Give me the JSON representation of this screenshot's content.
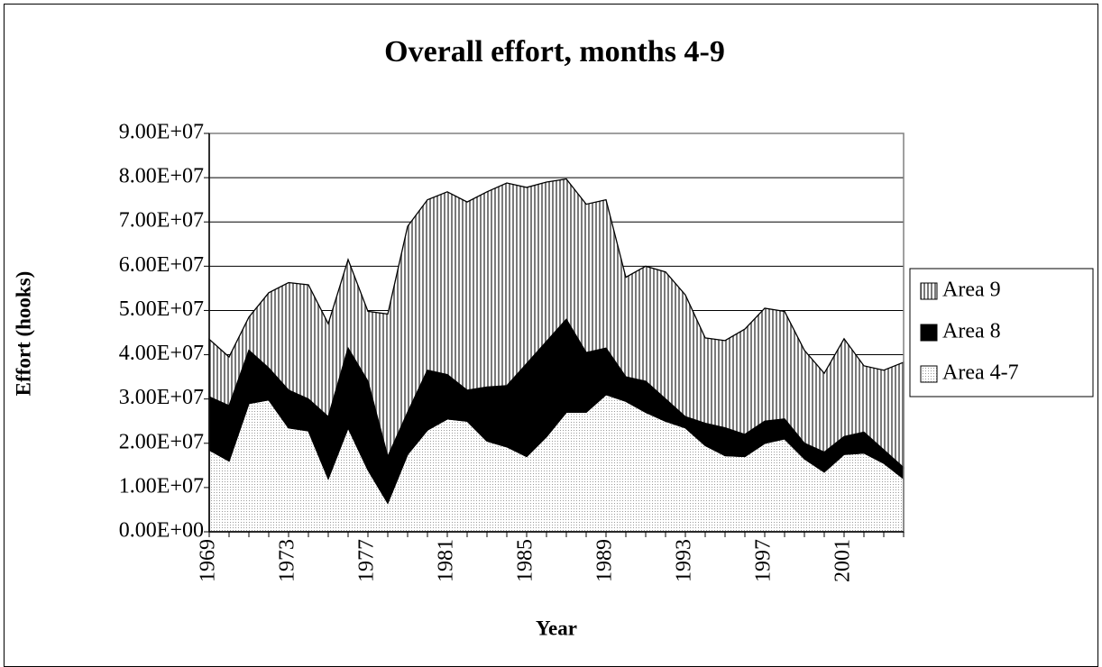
{
  "chart_data": {
    "type": "stacked-area",
    "title": "Overall effort, months 4-9",
    "x_label": "Year",
    "y_label": "Effort (hooks)",
    "categories": [
      "1969",
      null,
      null,
      null,
      "1973",
      null,
      null,
      null,
      "1977",
      null,
      null,
      null,
      "1981",
      null,
      null,
      null,
      "1985",
      null,
      null,
      null,
      "1989",
      null,
      null,
      null,
      "1993",
      null,
      null,
      null,
      "1997",
      null,
      null,
      null,
      "2001",
      null,
      null,
      null
    ],
    "series": [
      {
        "name": "Area 4-7",
        "color": "#b8b8b8",
        "pattern": "dots",
        "values": [
          18500000,
          16000000,
          29000000,
          29800000,
          23500000,
          22800000,
          12000000,
          23500000,
          14000000,
          6500000,
          17500000,
          23000000,
          25500000,
          25000000,
          20500000,
          19200000,
          17000000,
          21500000,
          27000000,
          27000000,
          31000000,
          29500000,
          27000000,
          25000000,
          23500000,
          19500000,
          17200000,
          17000000,
          20000000,
          21000000,
          16500000,
          13500000,
          17500000,
          17800000,
          15500000,
          12000000
        ]
      },
      {
        "name": "Area 8",
        "color": "#000000",
        "pattern": "solid",
        "values": [
          12000000,
          12500000,
          12000000,
          7200000,
          8500000,
          7200000,
          14000000,
          18000000,
          20000000,
          10500000,
          9500000,
          13500000,
          10000000,
          7000000,
          12200000,
          13800000,
          21000000,
          21500000,
          21000000,
          13500000,
          10500000,
          5500000,
          7000000,
          5000000,
          2500000,
          5000000,
          6300000,
          5000000,
          5000000,
          4500000,
          3500000,
          4500000,
          4000000,
          4700000,
          3000000,
          2500000
        ]
      },
      {
        "name": "Area 9",
        "color": "#808080",
        "pattern": "vertical-lines",
        "values": [
          13000000,
          11000000,
          7500000,
          17000000,
          24300000,
          25800000,
          21000000,
          20000000,
          15800000,
          32200000,
          42000000,
          38500000,
          41300000,
          42500000,
          44100000,
          45800000,
          39800000,
          36000000,
          31700000,
          33500000,
          33500000,
          22500000,
          26000000,
          28700000,
          27500000,
          19300000,
          19700000,
          23800000,
          25500000,
          24300000,
          21000000,
          17800000,
          22100000,
          15000000,
          18000000,
          23800000
        ]
      }
    ],
    "ylim": [
      0,
      90000000
    ],
    "yticks": [
      {
        "value": 0,
        "label": "0.00E+00"
      },
      {
        "value": 10000000,
        "label": "1.00E+07"
      },
      {
        "value": 20000000,
        "label": "2.00E+07"
      },
      {
        "value": 30000000,
        "label": "3.00E+07"
      },
      {
        "value": 40000000,
        "label": "4.00E+07"
      },
      {
        "value": 50000000,
        "label": "5.00E+07"
      },
      {
        "value": 60000000,
        "label": "6.00E+07"
      },
      {
        "value": 70000000,
        "label": "7.00E+07"
      },
      {
        "value": 80000000,
        "label": "8.00E+07"
      },
      {
        "value": 90000000,
        "label": "9.00E+07"
      }
    ],
    "grid": true,
    "legend": "right"
  }
}
